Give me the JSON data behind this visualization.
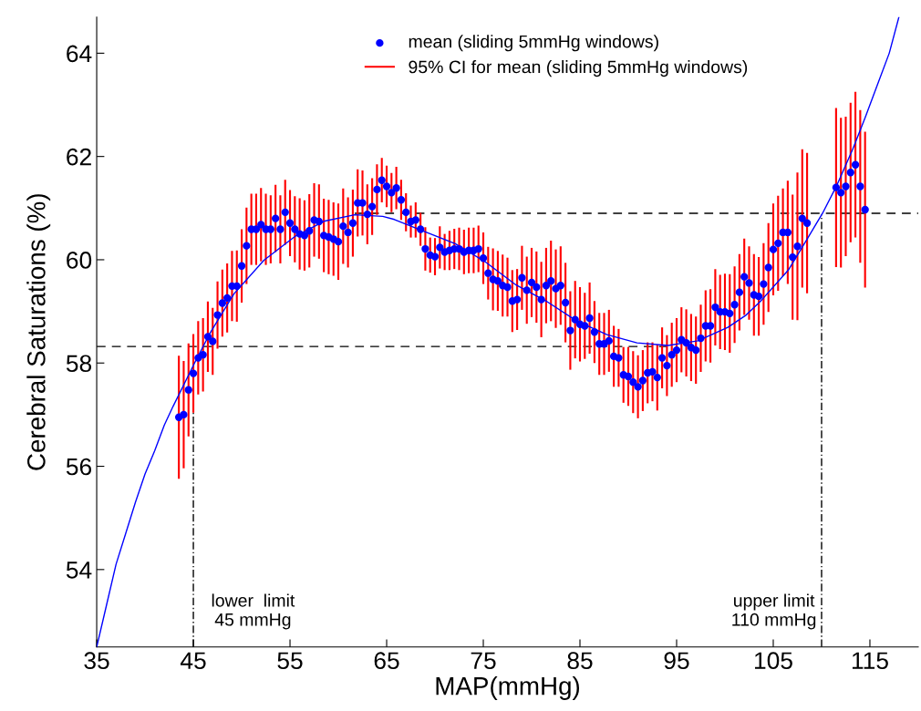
{
  "chart_data": {
    "type": "scatter",
    "xlabel": "MAP(mmHg)",
    "ylabel": "Cerebral Saturations (%)",
    "xlim": [
      35,
      120
    ],
    "ylim": [
      52.5,
      64.7
    ],
    "xticks": [
      35,
      45,
      55,
      65,
      75,
      85,
      95,
      105,
      115
    ],
    "yticks": [
      54,
      56,
      58,
      60,
      62,
      64
    ],
    "grid": false,
    "legend": "top",
    "ref_lines": [
      {
        "axis": "x",
        "value": 45,
        "label": "lower  limit\n45 mmHg",
        "color": "#000000",
        "line_style": "dashdot"
      },
      {
        "axis": "x",
        "value": 110,
        "label": "upper limit\n110 mmHg",
        "color": "#000000",
        "line_style": "dashdot"
      }
    ],
    "series": [
      {
        "name": "mean (sliding 5mmHg windows)",
        "color": "#0000ff",
        "marker": "circle",
        "x": [
          43.5,
          44,
          44.5,
          45,
          45.5,
          46,
          46.5,
          47,
          47.5,
          48,
          48.5,
          49,
          49.5,
          50,
          50.5,
          51,
          51.5,
          52,
          52.5,
          53,
          53.5,
          54,
          54.5,
          55,
          55.5,
          56,
          56.5,
          57,
          57.5,
          58,
          58.5,
          59,
          59.5,
          60,
          60.5,
          61,
          61.5,
          62,
          62.5,
          63,
          63.5,
          64,
          64.5,
          65,
          65.5,
          66,
          66.5,
          67,
          67.5,
          68,
          68.5,
          69,
          69.5,
          70,
          70.5,
          71,
          71.5,
          72,
          72.5,
          73,
          73.5,
          74,
          74.5,
          75,
          75.5,
          76,
          76.5,
          77,
          77.5,
          78,
          78.5,
          79,
          79.5,
          80,
          80.5,
          81,
          81.5,
          82,
          82.5,
          83,
          83.5,
          84,
          84.5,
          85,
          85.5,
          86,
          86.5,
          87,
          87.5,
          88,
          88.5,
          89,
          89.5,
          90,
          90.5,
          91,
          91.5,
          92,
          92.5,
          93,
          93.5,
          94,
          94.5,
          95,
          95.5,
          96,
          96.5,
          97,
          97.5,
          98,
          98.5,
          99,
          99.5,
          100,
          100.5,
          101,
          101.5,
          102,
          102.5,
          103,
          103.5,
          104,
          104.5,
          105,
          105.5,
          106,
          106.5,
          107,
          107.5,
          108,
          108.5,
          111.5,
          112,
          112.5,
          113,
          113.5,
          114,
          114.5
        ],
        "values": [
          56.95,
          57.0,
          57.48,
          57.8,
          58.1,
          58.16,
          58.51,
          58.42,
          58.93,
          59.16,
          59.26,
          59.49,
          59.49,
          59.88,
          60.27,
          60.59,
          60.59,
          60.68,
          60.59,
          60.59,
          60.8,
          60.59,
          60.92,
          60.71,
          60.59,
          60.5,
          60.47,
          60.56,
          60.77,
          60.74,
          60.47,
          60.44,
          60.4,
          60.35,
          60.65,
          60.53,
          60.71,
          61.1,
          61.1,
          60.88,
          61.03,
          61.36,
          61.54,
          61.42,
          61.3,
          61.39,
          61.16,
          60.92,
          60.74,
          60.77,
          60.59,
          60.21,
          60.09,
          60.06,
          60.24,
          60.15,
          60.18,
          60.21,
          60.21,
          60.15,
          60.18,
          60.18,
          60.21,
          60.03,
          59.74,
          59.62,
          59.59,
          59.5,
          59.47,
          59.2,
          59.23,
          59.65,
          59.41,
          59.56,
          59.47,
          59.23,
          59.5,
          59.59,
          59.44,
          59.5,
          59.17,
          58.63,
          58.84,
          58.75,
          58.72,
          58.87,
          58.6,
          58.37,
          58.37,
          58.43,
          58.13,
          58.1,
          57.77,
          57.74,
          57.63,
          57.54,
          57.66,
          57.81,
          57.83,
          57.72,
          58.1,
          57.95,
          58.16,
          58.25,
          58.45,
          58.39,
          58.3,
          58.25,
          58.48,
          58.72,
          58.72,
          59.08,
          58.99,
          58.99,
          58.96,
          59.13,
          59.37,
          59.67,
          59.55,
          59.32,
          59.29,
          59.53,
          59.85,
          60.2,
          60.32,
          60.53,
          60.53,
          60.05,
          60.26,
          60.8,
          60.71,
          61.4,
          61.3,
          61.42,
          61.69,
          61.84,
          61.42,
          60.97
        ]
      },
      {
        "name": "95% CI for mean (sliding 5mmHg windows)",
        "type": "bar",
        "color": "#ff0000",
        "x": [
          43.5,
          44,
          44.5,
          45,
          45.5,
          46,
          46.5,
          47,
          47.5,
          48,
          48.5,
          49,
          49.5,
          50,
          50.5,
          51,
          51.5,
          52,
          52.5,
          53,
          53.5,
          54,
          54.5,
          55,
          55.5,
          56,
          56.5,
          57,
          57.5,
          58,
          58.5,
          59,
          59.5,
          60,
          60.5,
          61,
          61.5,
          62,
          62.5,
          63,
          63.5,
          64,
          64.5,
          65,
          65.5,
          66,
          66.5,
          67,
          67.5,
          68,
          68.5,
          69,
          69.5,
          70,
          70.5,
          71,
          71.5,
          72,
          72.5,
          73,
          73.5,
          74,
          74.5,
          75,
          75.5,
          76,
          76.5,
          77,
          77.5,
          78,
          78.5,
          79,
          79.5,
          80,
          80.5,
          81,
          81.5,
          82,
          82.5,
          83,
          83.5,
          84,
          84.5,
          85,
          85.5,
          86,
          86.5,
          87,
          87.5,
          88,
          88.5,
          89,
          89.5,
          90,
          90.5,
          91,
          91.5,
          92,
          92.5,
          93,
          93.5,
          94,
          94.5,
          95,
          95.5,
          96,
          96.5,
          97,
          97.5,
          98,
          98.5,
          99,
          99.5,
          100,
          100.5,
          101,
          101.5,
          102,
          102.5,
          103,
          103.5,
          104,
          104.5,
          105,
          105.5,
          106,
          106.5,
          107,
          107.5,
          108,
          108.5,
          111.5,
          112,
          112.5,
          113,
          113.5,
          114,
          114.5
        ],
        "base": [
          55.76,
          55.96,
          56.58,
          57.04,
          57.39,
          57.45,
          57.83,
          57.77,
          58.28,
          58.51,
          58.59,
          58.81,
          58.8,
          59.17,
          59.53,
          59.9,
          59.9,
          59.97,
          59.9,
          59.93,
          60.15,
          59.93,
          60.29,
          60.07,
          59.95,
          59.81,
          59.79,
          59.85,
          60.06,
          60.02,
          59.76,
          59.72,
          59.69,
          59.61,
          59.92,
          59.85,
          60.06,
          60.45,
          60.47,
          60.3,
          60.48,
          60.87,
          61.11,
          61.02,
          60.92,
          60.98,
          60.77,
          60.55,
          60.43,
          60.43,
          60.27,
          59.79,
          59.75,
          59.7,
          59.83,
          59.8,
          59.8,
          59.82,
          59.8,
          59.72,
          59.74,
          59.74,
          59.76,
          59.53,
          59.23,
          59.02,
          59.01,
          58.9,
          58.9,
          58.6,
          58.64,
          59.03,
          58.76,
          58.89,
          58.78,
          58.5,
          58.77,
          58.81,
          58.68,
          58.74,
          58.4,
          57.87,
          58.09,
          58.03,
          58.08,
          58.18,
          58.0,
          57.77,
          57.77,
          57.83,
          57.54,
          57.54,
          57.23,
          57.17,
          57.03,
          56.93,
          57.07,
          57.22,
          57.26,
          57.08,
          57.51,
          57.36,
          57.54,
          57.63,
          57.82,
          57.74,
          57.65,
          57.6,
          57.83,
          58.03,
          58.01,
          58.34,
          58.27,
          58.25,
          58.2,
          58.39,
          58.63,
          58.93,
          58.84,
          58.53,
          58.53,
          58.74,
          58.99,
          59.31,
          59.4,
          59.68,
          59.53,
          58.84,
          58.83,
          59.46,
          59.35,
          59.86,
          59.85,
          60.07,
          60.34,
          60.43,
          59.94,
          59.46
        ],
        "values": [
          2.38,
          2.08,
          1.8,
          1.52,
          1.42,
          1.42,
          1.36,
          1.3,
          1.3,
          1.3,
          1.34,
          1.36,
          1.38,
          1.42,
          1.48,
          1.38,
          1.38,
          1.42,
          1.38,
          1.32,
          1.3,
          1.32,
          1.26,
          1.28,
          1.28,
          1.38,
          1.36,
          1.42,
          1.42,
          1.44,
          1.42,
          1.44,
          1.42,
          1.48,
          1.46,
          1.36,
          1.3,
          1.3,
          1.26,
          1.16,
          1.1,
          0.98,
          0.86,
          0.8,
          0.76,
          0.82,
          0.78,
          0.74,
          0.62,
          0.68,
          0.64,
          0.84,
          0.68,
          0.72,
          0.82,
          0.7,
          0.76,
          0.78,
          0.82,
          0.86,
          0.88,
          0.88,
          0.9,
          1.0,
          1.02,
          1.2,
          1.16,
          1.2,
          1.14,
          1.2,
          1.18,
          1.24,
          1.3,
          1.34,
          1.38,
          1.46,
          1.46,
          1.56,
          1.52,
          1.52,
          1.54,
          1.52,
          1.5,
          1.44,
          1.28,
          1.38,
          1.2,
          1.2,
          1.2,
          1.2,
          1.18,
          1.12,
          1.08,
          1.14,
          1.2,
          1.22,
          1.18,
          1.18,
          1.14,
          1.28,
          1.18,
          1.18,
          1.24,
          1.24,
          1.26,
          1.3,
          1.3,
          1.3,
          1.3,
          1.38,
          1.42,
          1.48,
          1.44,
          1.48,
          1.52,
          1.48,
          1.48,
          1.48,
          1.42,
          1.58,
          1.52,
          1.58,
          1.72,
          1.78,
          1.84,
          1.7,
          2.0,
          2.42,
          2.86,
          2.68,
          2.72,
          3.08,
          2.9,
          2.7,
          2.7,
          2.82,
          2.96,
          3.02
        ]
      },
      {
        "type": "line",
        "color": "#0000ff",
        "line_style": "solid",
        "x": [
          35,
          36,
          37,
          38,
          39,
          40,
          41,
          42,
          42.9,
          45.1,
          46.7,
          49.2,
          52.3,
          55.5,
          58.6,
          61.7,
          64.6,
          65.8,
          69,
          72.1,
          75.2,
          78.4,
          81.5,
          84.7,
          87.8,
          90.9,
          94.1,
          97.2,
          100.3,
          102.2,
          103.8,
          106.6,
          108.5,
          110.1,
          111.6,
          113.2,
          114.5,
          115.9,
          117,
          118
        ],
        "values": [
          52.5,
          53.3,
          54.1,
          54.7,
          55.3,
          55.85,
          56.3,
          56.8,
          57.16,
          57.99,
          58.57,
          59.34,
          59.99,
          60.45,
          60.75,
          60.87,
          60.84,
          60.78,
          60.54,
          60.31,
          59.96,
          59.51,
          59.2,
          58.81,
          58.55,
          58.39,
          58.34,
          58.43,
          58.69,
          58.93,
          59.22,
          59.81,
          60.4,
          60.9,
          61.45,
          62.13,
          62.75,
          63.45,
          64.0,
          64.7
        ]
      },
      {
        "type": "line",
        "color": "#000000",
        "line_style": "dashed",
        "x": [
          35,
          94
        ],
        "values": [
          58.32,
          58.32
        ]
      },
      {
        "type": "line",
        "color": "#000000",
        "line_style": "dashed",
        "x": [
          61.7,
          120
        ],
        "values": [
          60.9,
          60.9
        ]
      }
    ]
  }
}
